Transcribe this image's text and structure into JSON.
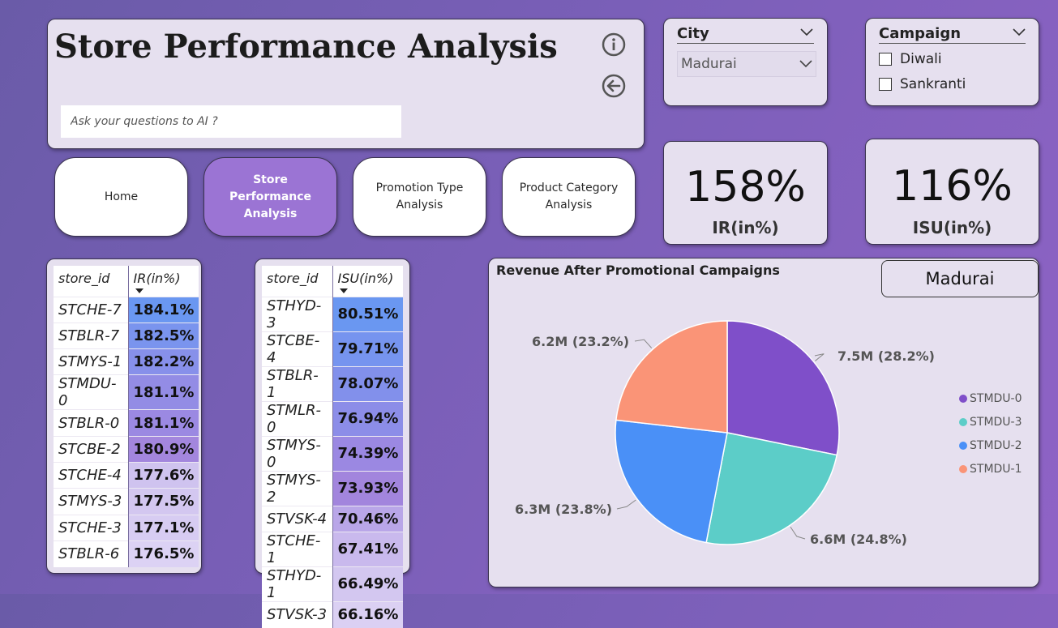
{
  "header": {
    "title": "Store Performance Analysis",
    "ai_placeholder": "Ask your questions to AI ?",
    "info_icon": "info-circle-icon",
    "back_icon": "back-arrow-icon"
  },
  "nav": {
    "buttons": [
      {
        "label": "Home"
      },
      {
        "label": "Store Performance Analysis"
      },
      {
        "label": "Promotion Type Analysis"
      },
      {
        "label": "Product Category Analysis"
      }
    ]
  },
  "city_slicer": {
    "title": "City",
    "selected": "Madurai"
  },
  "campaign_slicer": {
    "title": "Campaign",
    "options": [
      {
        "label": "Diwali"
      },
      {
        "label": "Sankranti"
      }
    ]
  },
  "kpis": {
    "ir": {
      "value": "158%",
      "label": "IR(in%)"
    },
    "isu": {
      "value": "116%",
      "label": "ISU(in%)"
    }
  },
  "ir_table": {
    "headers": [
      "store_id",
      "IR(in%)"
    ],
    "rows": [
      {
        "store": "STCHE-7",
        "value": "184.1%"
      },
      {
        "store": "STBLR-7",
        "value": "182.5%"
      },
      {
        "store": "STMYS-1",
        "value": "182.2%"
      },
      {
        "store": "STMDU-0",
        "value": "181.1%"
      },
      {
        "store": "STBLR-0",
        "value": "181.1%"
      },
      {
        "store": "STCBE-2",
        "value": "180.9%"
      },
      {
        "store": "STCHE-4",
        "value": "177.6%"
      },
      {
        "store": "STMYS-3",
        "value": "177.5%"
      },
      {
        "store": "STCHE-3",
        "value": "177.1%"
      },
      {
        "store": "STBLR-6",
        "value": "176.5%"
      }
    ]
  },
  "isu_table": {
    "headers": [
      "store_id",
      "ISU(in%)"
    ],
    "rows": [
      {
        "store": "STHYD-3",
        "value": "80.51%"
      },
      {
        "store": "STCBE-4",
        "value": "79.71%"
      },
      {
        "store": "STBLR-1",
        "value": "78.07%"
      },
      {
        "store": "STMLR-0",
        "value": "76.94%"
      },
      {
        "store": "STMYS-0",
        "value": "74.39%"
      },
      {
        "store": "STMYS-2",
        "value": "73.93%"
      },
      {
        "store": "STVSK-4",
        "value": "70.46%"
      },
      {
        "store": "STCHE-1",
        "value": "67.41%"
      },
      {
        "store": "STHYD-1",
        "value": "66.49%"
      },
      {
        "store": "STVSK-3",
        "value": "66.16%"
      }
    ]
  },
  "pie_panel": {
    "city_tag": "Madurai"
  },
  "chart_data": {
    "type": "pie",
    "title": "Revenue After Promotional Campaigns",
    "slices": [
      {
        "name": "STMDU-0",
        "value": 7.5,
        "percent": 28.2,
        "label": "7.5M (28.2%)",
        "color": "#7f4fc9"
      },
      {
        "name": "STMDU-3",
        "value": 6.6,
        "percent": 24.8,
        "label": "6.6M (24.8%)",
        "color": "#5ccdc8"
      },
      {
        "name": "STMDU-2",
        "value": 6.3,
        "percent": 23.8,
        "label": "6.3M (23.8%)",
        "color": "#4a90f7"
      },
      {
        "name": "STMDU-1",
        "value": 6.2,
        "percent": 23.2,
        "label": "6.2M (23.2%)",
        "color": "#fa9477"
      }
    ],
    "legend_position": "right"
  }
}
